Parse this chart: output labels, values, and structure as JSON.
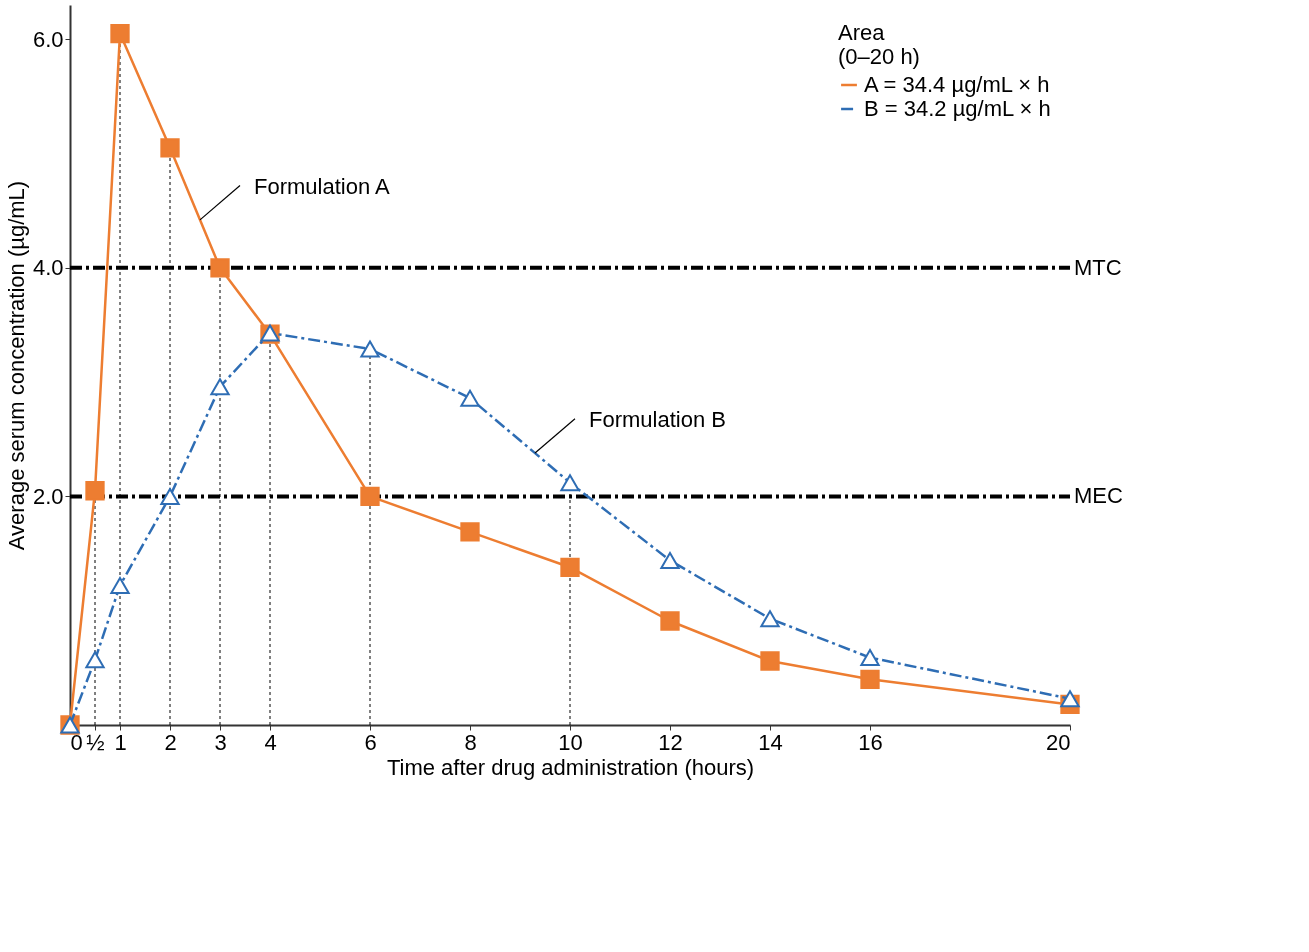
{
  "chart_data": {
    "type": "line",
    "xlabel": "Time after drug administration (hours)",
    "ylabel": "Average serum concentration (µg/mL)",
    "legend_title": "Area (0–20 h)",
    "legend": "top right",
    "grid": false,
    "x": [
      0,
      0.5,
      1,
      2,
      3,
      4,
      6,
      8,
      10,
      12,
      14,
      16,
      20
    ],
    "series": [
      {
        "name": "A = 34.4 µg/mL × h",
        "color": "#ed7d31",
        "marker": "square",
        "line_style": "solid",
        "values": [
          0,
          2.05,
          6.05,
          5.05,
          4.0,
          3.42,
          2.0,
          1.69,
          1.38,
          0.91,
          0.56,
          0.4,
          0.18
        ]
      },
      {
        "name": "B = 34.2 µg/mL × h",
        "color": "#2e6db4",
        "marker": "triangle",
        "line_style": "dashed",
        "values": [
          0,
          0.57,
          1.22,
          2.0,
          2.96,
          3.43,
          3.29,
          2.86,
          2.12,
          1.44,
          0.93,
          0.59,
          0.23
        ]
      }
    ],
    "xlim": [
      0,
      20
    ],
    "ylim": [
      0,
      6.3
    ],
    "xticks": [
      0,
      {
        "value": 0.5,
        "label": "½"
      },
      1,
      2,
      3,
      4,
      6,
      8,
      10,
      12,
      14,
      16,
      20
    ],
    "yticks": [
      {
        "value": 2,
        "label": "2.0"
      },
      {
        "value": 4,
        "label": "4.0"
      },
      {
        "value": 6,
        "label": "6.0"
      }
    ],
    "ref_lines": [
      {
        "axis": "y",
        "value": 4,
        "label": "MTC",
        "color": "#000000",
        "line_style": "dashed"
      },
      {
        "axis": "y",
        "value": 2,
        "label": "MEC",
        "color": "#000000",
        "line_style": "dashed"
      },
      {
        "axis": "x",
        "value": 0.5,
        "label": null,
        "color": "#000000",
        "line_style": "dotted"
      },
      {
        "axis": "x",
        "value": 1,
        "label": null,
        "color": "#000000",
        "line_style": "dotted"
      },
      {
        "axis": "x",
        "value": 2,
        "label": null,
        "color": "#000000",
        "line_style": "dotted"
      },
      {
        "axis": "x",
        "value": 3,
        "label": null,
        "color": "#000000",
        "line_style": "dotted"
      },
      {
        "axis": "x",
        "value": 4,
        "label": null,
        "color": "#000000",
        "line_style": "dotted"
      },
      {
        "axis": "x",
        "value": 6,
        "label": null,
        "color": "#000000",
        "line_style": "dotted"
      },
      {
        "axis": "x",
        "value": 10,
        "label": null,
        "color": "#000000",
        "line_style": "dotted"
      }
    ],
    "annotations": [
      {
        "text": "Formulation A",
        "x": 2.6,
        "y": 4.42
      },
      {
        "text": "Formulation B",
        "x": 9.3,
        "y": 2.38
      }
    ]
  }
}
